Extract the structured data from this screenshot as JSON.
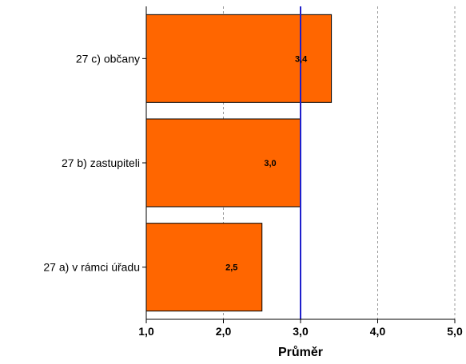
{
  "chart_data": {
    "type": "bar",
    "orientation": "horizontal",
    "categories": [
      "27 c) občany",
      "27 b) zastupiteli",
      "27 a) v rámci úřadu"
    ],
    "values": [
      3.4,
      3.0,
      2.5
    ],
    "data_labels": [
      "3,4",
      "3,0",
      "2,5"
    ],
    "xlabel": "Průměr",
    "ylabel": "",
    "xlim": [
      1.0,
      5.0
    ],
    "xticks": [
      1.0,
      2.0,
      3.0,
      4.0,
      5.0
    ],
    "xtick_labels": [
      "1,0",
      "2,0",
      "3,0",
      "4,0",
      "5,0"
    ],
    "reference_line": 3.0,
    "grid": "vertical dashed",
    "legend": "none",
    "colors": {
      "bar_fill": "#FF6600",
      "bar_stroke": "#000000",
      "reference_line": "#1F1FCC",
      "grid": "#999999",
      "axis": "#000000"
    }
  }
}
